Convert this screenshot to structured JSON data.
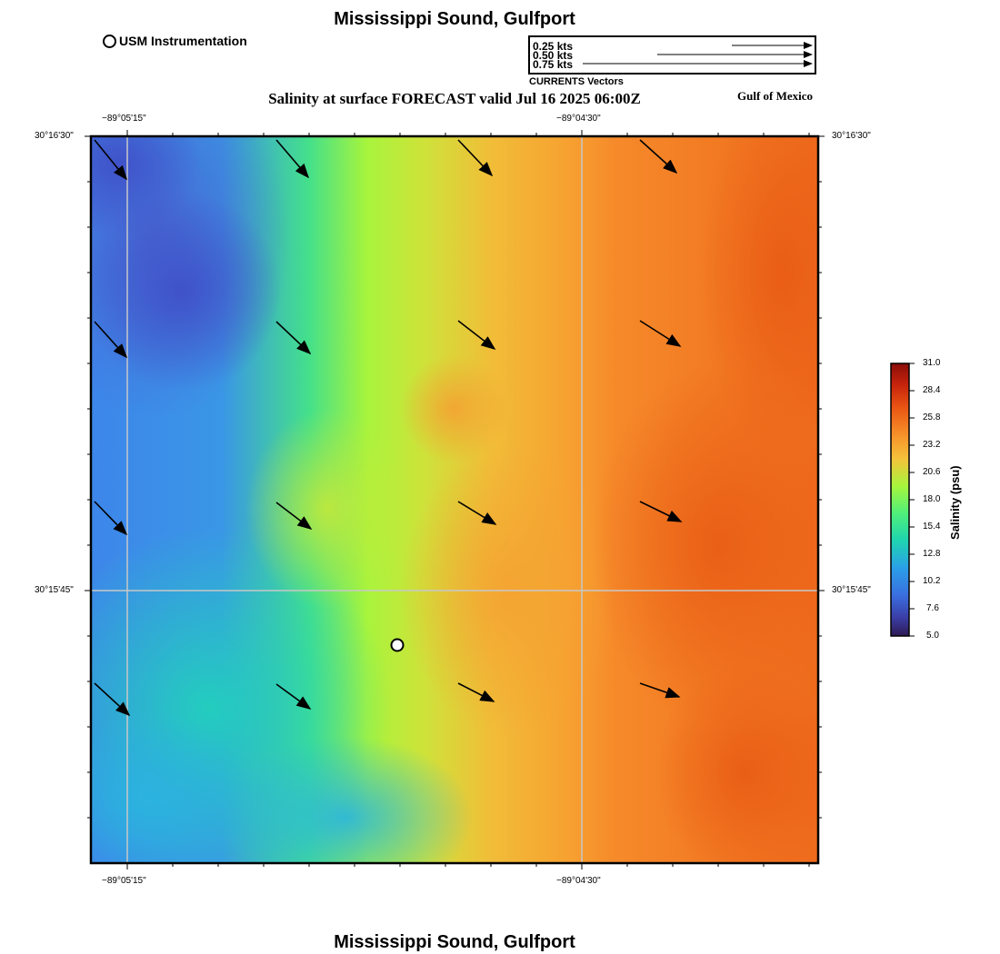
{
  "map": {
    "title": "Mississippi Sound, Gulfport",
    "bottom_title": "Mississippi Sound, Gulfport",
    "subtitle": "Salinity at surface FORECAST valid Jul 16 2025 06:00Z",
    "region_label": "Gulf of Mexico"
  },
  "legend": {
    "station_label": "USM Instrumentation",
    "vector_caption": "CURRENTS Vectors",
    "vector_scales": [
      "0.25 kts",
      "0.50 kts",
      "0.75 kts"
    ]
  },
  "axes": {
    "lon_top": [
      "−89°05'15\"",
      "−89°04'30\""
    ],
    "lon_bottom": [
      "−89°05'15\"",
      "−89°04'30\""
    ],
    "lat_left": [
      "30°16'30\"",
      "30°15'45\""
    ],
    "lat_right": [
      "30°16'30\"",
      "30°15'45\""
    ]
  },
  "colorbar": {
    "title": "Salinity (psu)",
    "ticks": [
      "31.0",
      "28.4",
      "25.8",
      "23.2",
      "20.6",
      "18.0",
      "15.4",
      "12.8",
      "10.2",
      "7.6",
      "5.0"
    ],
    "colors": [
      "#8a0e0a",
      "#c8240c",
      "#ec5a14",
      "#f7962c",
      "#f4c33a",
      "#e3dc36",
      "#a6f43c",
      "#4ff07a",
      "#1fd4b0",
      "#2aa0e8",
      "#3a6fe0",
      "#3b3fa8",
      "#2d1a54"
    ]
  },
  "chart_data": {
    "type": "heatmap",
    "variable": "Salinity at surface",
    "units": "psu",
    "range": [
      5.0,
      31.0
    ],
    "station_marker": "USM Instrumentation"
  }
}
